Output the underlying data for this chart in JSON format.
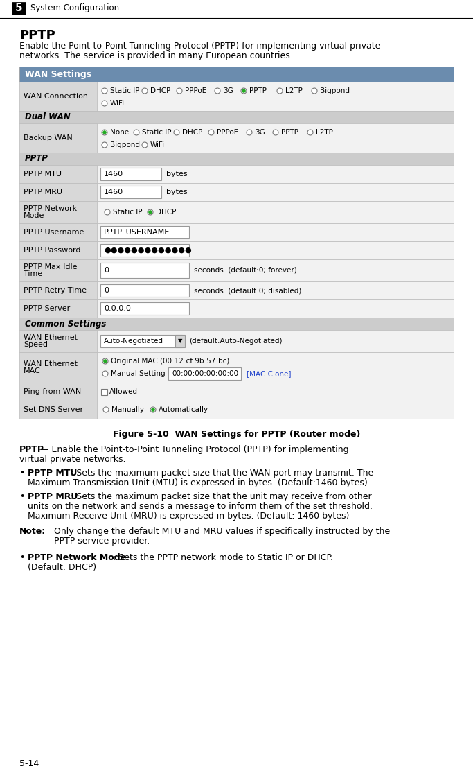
{
  "page_num": "5",
  "chapter_title": "System Configuration",
  "section_title": "PPTP",
  "intro_line1": "Enable the Point-to-Point Tunneling Protocol (PPTP) for implementing virtual private",
  "intro_line2": "networks. The service is provided in many European countries.",
  "figure_caption": "Figure 5-10  WAN Settings for PPTP (Router mode)",
  "footer": "5-14",
  "wan_header_bg": "#6b8cae",
  "section_header_bg": "#cccccc",
  "label_bg": "#d8d8d8",
  "value_bg": "#f2f2f2",
  "radio_green": "#22aa22",
  "radio_border": "#666666",
  "blue_link": "#2244cc",
  "table_border": "#bbbbbb",
  "wan_connection_items": [
    {
      "label": "Static IP",
      "selected": false
    },
    {
      "label": "DHCP",
      "selected": false
    },
    {
      "label": "PPPoE",
      "selected": false
    },
    {
      "label": "3G",
      "selected": false
    },
    {
      "label": "PPTP",
      "selected": true
    },
    {
      "label": "L2TP",
      "selected": false
    },
    {
      "label": "Bigpond",
      "selected": false
    }
  ],
  "wan_connection_row2": [
    {
      "label": "WiFi",
      "selected": false
    }
  ],
  "backup_wan_items": [
    {
      "label": "None",
      "selected": true
    },
    {
      "label": "Static IP",
      "selected": false
    },
    {
      "label": "DHCP",
      "selected": false
    },
    {
      "label": "PPPoE",
      "selected": false
    },
    {
      "label": "3G",
      "selected": false
    },
    {
      "label": "PPTP",
      "selected": false
    },
    {
      "label": "L2TP",
      "selected": false
    }
  ],
  "backup_wan_row2": [
    {
      "label": "Bigpond",
      "selected": false
    },
    {
      "label": "WiFi",
      "selected": false
    }
  ],
  "pptp_network_mode": [
    {
      "label": "Static IP",
      "selected": false
    },
    {
      "label": "DHCP",
      "selected": true
    }
  ],
  "dns_server_items": [
    {
      "label": "Manually",
      "selected": false
    },
    {
      "label": "Automatically",
      "selected": true
    }
  ]
}
